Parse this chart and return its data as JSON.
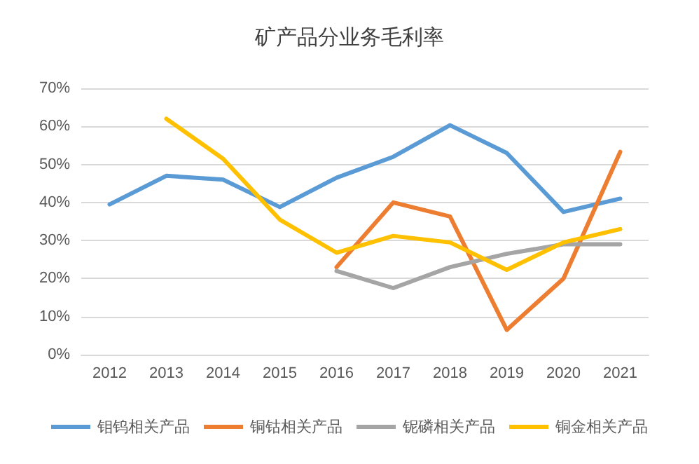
{
  "chart_data": {
    "type": "line",
    "title": "矿产品分业务毛利率",
    "categories": [
      "2012",
      "2013",
      "2014",
      "2015",
      "2016",
      "2017",
      "2018",
      "2019",
      "2020",
      "2021"
    ],
    "series": [
      {
        "name": "钼钨相关产品",
        "color": "#5b9bd5",
        "values": [
          39.5,
          47,
          46,
          38.8,
          46.5,
          52,
          60.3,
          53,
          37.5,
          41
        ]
      },
      {
        "name": "铜钴相关产品",
        "color": "#ed7d31",
        "values": [
          null,
          null,
          null,
          null,
          23,
          40,
          36.3,
          6.5,
          20,
          53.3
        ]
      },
      {
        "name": "铌磷相关产品",
        "color": "#a5a5a5",
        "values": [
          null,
          null,
          null,
          null,
          22,
          17.5,
          23,
          26.5,
          29,
          29
        ]
      },
      {
        "name": "铜金相关产品",
        "color": "#ffc000",
        "values": [
          null,
          62,
          51.5,
          35.5,
          26.8,
          31.2,
          29.5,
          22.3,
          29.5,
          33
        ]
      }
    ],
    "ylim": [
      0,
      70
    ],
    "yticks": [
      {
        "value": 0,
        "label": "0%"
      },
      {
        "value": 10,
        "label": "10%"
      },
      {
        "value": 20,
        "label": "20%"
      },
      {
        "value": 30,
        "label": "30%"
      },
      {
        "value": 40,
        "label": "40%"
      },
      {
        "value": 50,
        "label": "50%"
      },
      {
        "value": 60,
        "label": "60%"
      },
      {
        "value": 70,
        "label": "70%"
      }
    ],
    "grid": "y",
    "legend": "bottom",
    "marker": "none",
    "line_style": "solid"
  }
}
